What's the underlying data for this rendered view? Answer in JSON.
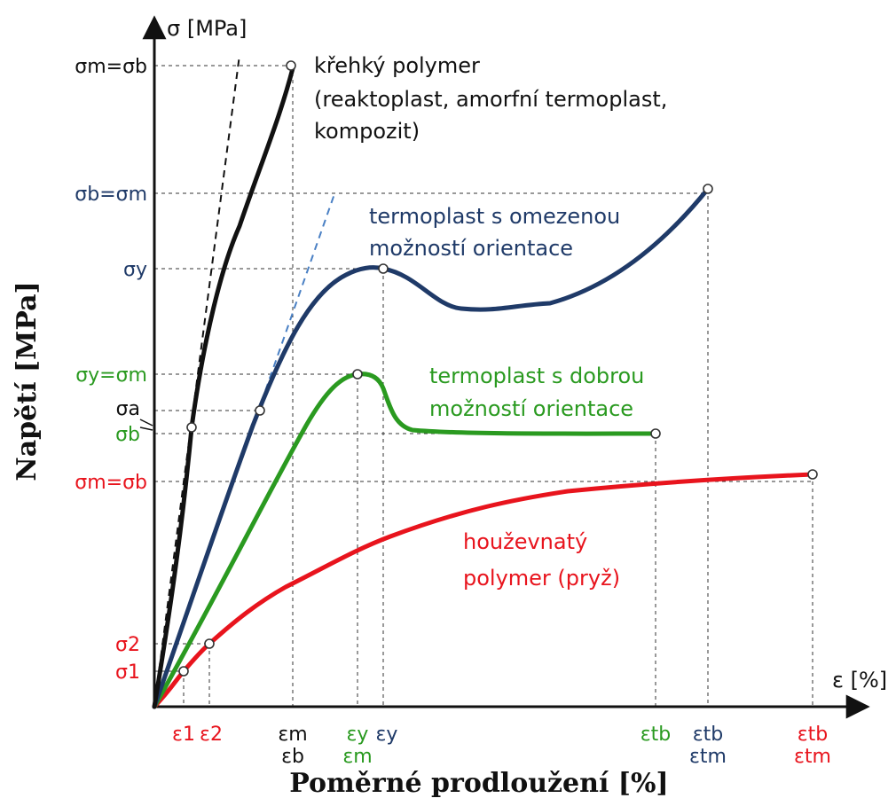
{
  "colors": {
    "black": "#111111",
    "navy": "#1f3a68",
    "green": "#2a9a20",
    "red": "#e8141d",
    "dashed_blue": "#4a80c4"
  },
  "axes": {
    "y_axis_unit": "σ [MPa]",
    "x_axis_unit": "ε [%]",
    "y_title": "Napětí [MPa]",
    "x_title": "Poměrné prodloužení [%]"
  },
  "y_labels": {
    "brittle": "σm=σb",
    "limited": "σb=σm",
    "limited_yield": "σy",
    "good": "σy=σm",
    "sigma_a": "σa",
    "good_break": "σb",
    "tough": "σm=σb",
    "sigma_2": "σ2",
    "sigma_1": "σ1"
  },
  "x_labels": {
    "eps_1": "ε1",
    "eps_2": "ε2",
    "brittle_1": "εm",
    "brittle_2": "εb",
    "good_y": "εy",
    "good_m": "εm",
    "limited_y": "εy",
    "good_tb": "εtb",
    "limited_tb": "εtb",
    "limited_tm": "εtm",
    "tough_tb": "εtb",
    "tough_tm": "εtm"
  },
  "captions": {
    "brittle_1": "křehký polymer",
    "brittle_2": "(reaktoplast, amorfní termoplast,",
    "brittle_3": "kompozit)",
    "limited_1": "termoplast s omezenou",
    "limited_2": "možností orientace",
    "good_1": "termoplast s dobrou",
    "good_2": "možností orientace",
    "tough_1": "houževnatý",
    "tough_2": "polymer (pryž)"
  },
  "chart_data": {
    "type": "line",
    "title": "",
    "xlabel": "Poměrné prodloužení [%]",
    "ylabel": "Napětí [MPa]",
    "qualitative": true,
    "series": [
      {
        "name": "křehký polymer (reaktoplast, amorfní termoplast, kompozit)",
        "end_x": "εm = εb",
        "end_y": "σm = σb"
      },
      {
        "name": "termoplast s omezenou možností orientace",
        "yield": [
          "εy",
          "σy"
        ],
        "end_x": "εtb = εtm",
        "end_y": "σb = σm"
      },
      {
        "name": "termoplast s dobrou možností orientace",
        "yield": [
          "εy = εm",
          "σy = σm"
        ],
        "end_x": "εtb",
        "end_y": "σb"
      },
      {
        "name": "houževnatý polymer (pryž)",
        "points": [
          [
            "ε1",
            "σ1"
          ],
          [
            "ε2",
            "σ2"
          ]
        ],
        "end_x": "εtb = εtm",
        "end_y": "σm = σb"
      }
    ]
  }
}
